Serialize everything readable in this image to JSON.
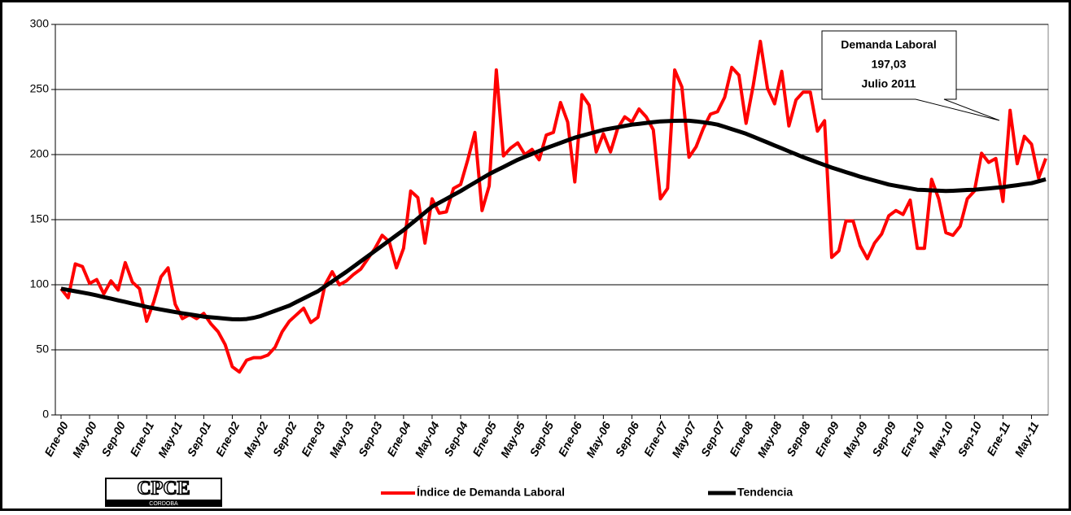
{
  "chart_data": {
    "type": "line",
    "categories": [
      "Ene-00",
      null,
      null,
      null,
      "May-00",
      null,
      null,
      null,
      "Sep-00",
      null,
      null,
      null,
      "Ene-01",
      null,
      null,
      null,
      "May-01",
      null,
      null,
      null,
      "Sep-01",
      null,
      null,
      null,
      "Ene-02",
      null,
      null,
      null,
      "May-02",
      null,
      null,
      null,
      "Sep-02",
      null,
      null,
      null,
      "Ene-03",
      null,
      null,
      null,
      "May-03",
      null,
      null,
      null,
      "Sep-03",
      null,
      null,
      null,
      "Ene-04",
      null,
      null,
      null,
      "May-04",
      null,
      null,
      null,
      "Sep-04",
      null,
      null,
      null,
      "Ene-05",
      null,
      null,
      null,
      "May-05",
      null,
      null,
      null,
      "Sep-05",
      null,
      null,
      null,
      "Ene-06",
      null,
      null,
      null,
      "May-06",
      null,
      null,
      null,
      "Sep-06",
      null,
      null,
      null,
      "Ene-07",
      null,
      null,
      null,
      "May-07",
      null,
      null,
      null,
      "Sep-07",
      null,
      null,
      null,
      "Ene-08",
      null,
      null,
      null,
      "May-08",
      null,
      null,
      null,
      "Sep-08",
      null,
      null,
      null,
      "Ene-09",
      null,
      null,
      null,
      "May-09",
      null,
      null,
      null,
      "Sep-09",
      null,
      null,
      null,
      "Ene-10",
      null,
      null,
      null,
      "May-10",
      null,
      null,
      null,
      "Sep-10",
      null,
      null,
      null,
      "Ene-11",
      null,
      null,
      null,
      "May-11",
      null,
      null
    ],
    "series": [
      {
        "name": "Índice de Demanda Laboral",
        "color": "#ff0000",
        "values": [
          97,
          90,
          116,
          114,
          101,
          104,
          93,
          103,
          96,
          117,
          102,
          97,
          72,
          87,
          106,
          113,
          85,
          74,
          77,
          74,
          78,
          70,
          64,
          54,
          37,
          33,
          42,
          44,
          44,
          46,
          52,
          64,
          72,
          77,
          82,
          71,
          75,
          100,
          110,
          100,
          103,
          108,
          112,
          120,
          128,
          138,
          133,
          113,
          128,
          172,
          167,
          132,
          166,
          155,
          156,
          174,
          177,
          196,
          217,
          157,
          176,
          265,
          199,
          205,
          209,
          200,
          204,
          196,
          215,
          217,
          240,
          225,
          179,
          246,
          238,
          202,
          216,
          202,
          220,
          229,
          225,
          235,
          229,
          219,
          166,
          174,
          265,
          252,
          198,
          206,
          220,
          231,
          233,
          244,
          267,
          261,
          224,
          253,
          287,
          251,
          239,
          264,
          222,
          242,
          248,
          248,
          218,
          226,
          121,
          126,
          149,
          149,
          130,
          120,
          132,
          139,
          153,
          157,
          154,
          165,
          128,
          128,
          181,
          166,
          140,
          138,
          145,
          166,
          172,
          201,
          194,
          197,
          164,
          234,
          193,
          214,
          208,
          182,
          197.03
        ]
      },
      {
        "name": "Tendencia",
        "color": "#000000",
        "values": [
          97,
          96,
          95,
          94,
          93,
          91.8,
          90.5,
          89.3,
          88,
          86.8,
          85.5,
          84.3,
          83,
          82,
          81,
          80,
          79,
          78.1,
          77.3,
          76.4,
          75.5,
          75,
          74.5,
          74,
          73.5,
          73.4,
          73.7,
          74.6,
          76,
          78,
          80,
          82,
          84,
          86.8,
          89.5,
          92.3,
          95,
          98.8,
          102.5,
          106.3,
          110,
          114,
          118,
          122,
          126,
          130,
          134,
          138,
          142,
          146.5,
          151,
          155.5,
          160,
          163,
          166,
          169,
          172,
          175.3,
          178.5,
          181.8,
          185,
          187.8,
          190.5,
          193.3,
          196,
          198.3,
          200.5,
          202.8,
          205,
          207,
          209,
          211,
          213,
          214.5,
          216,
          217.5,
          219,
          220,
          221,
          222,
          223,
          223.6,
          224.3,
          224.9,
          225.5,
          225.7,
          225.9,
          226,
          226,
          225.5,
          224.8,
          224,
          223,
          221.3,
          219.5,
          217.8,
          216,
          213.8,
          211.5,
          209.3,
          207,
          204.8,
          202.5,
          200.3,
          198,
          196,
          194,
          192,
          190,
          188.3,
          186.5,
          184.8,
          183,
          181.5,
          180,
          178.5,
          177,
          176,
          175,
          174,
          173,
          172.8,
          172.5,
          172.3,
          172,
          172.2,
          172.5,
          172.8,
          173,
          173.5,
          174,
          174.5,
          175,
          175.8,
          176.5,
          177.3,
          178,
          179.5,
          181
        ]
      }
    ],
    "ylim": [
      0,
      300
    ],
    "yticks": [
      0,
      50,
      100,
      150,
      200,
      250,
      300
    ],
    "grid": true,
    "annotation": [
      "Demanda Laboral",
      "197,03",
      "Julio 2011"
    ],
    "legend": "bottom",
    "logo": [
      "CPCE",
      "CORDOBA"
    ]
  }
}
